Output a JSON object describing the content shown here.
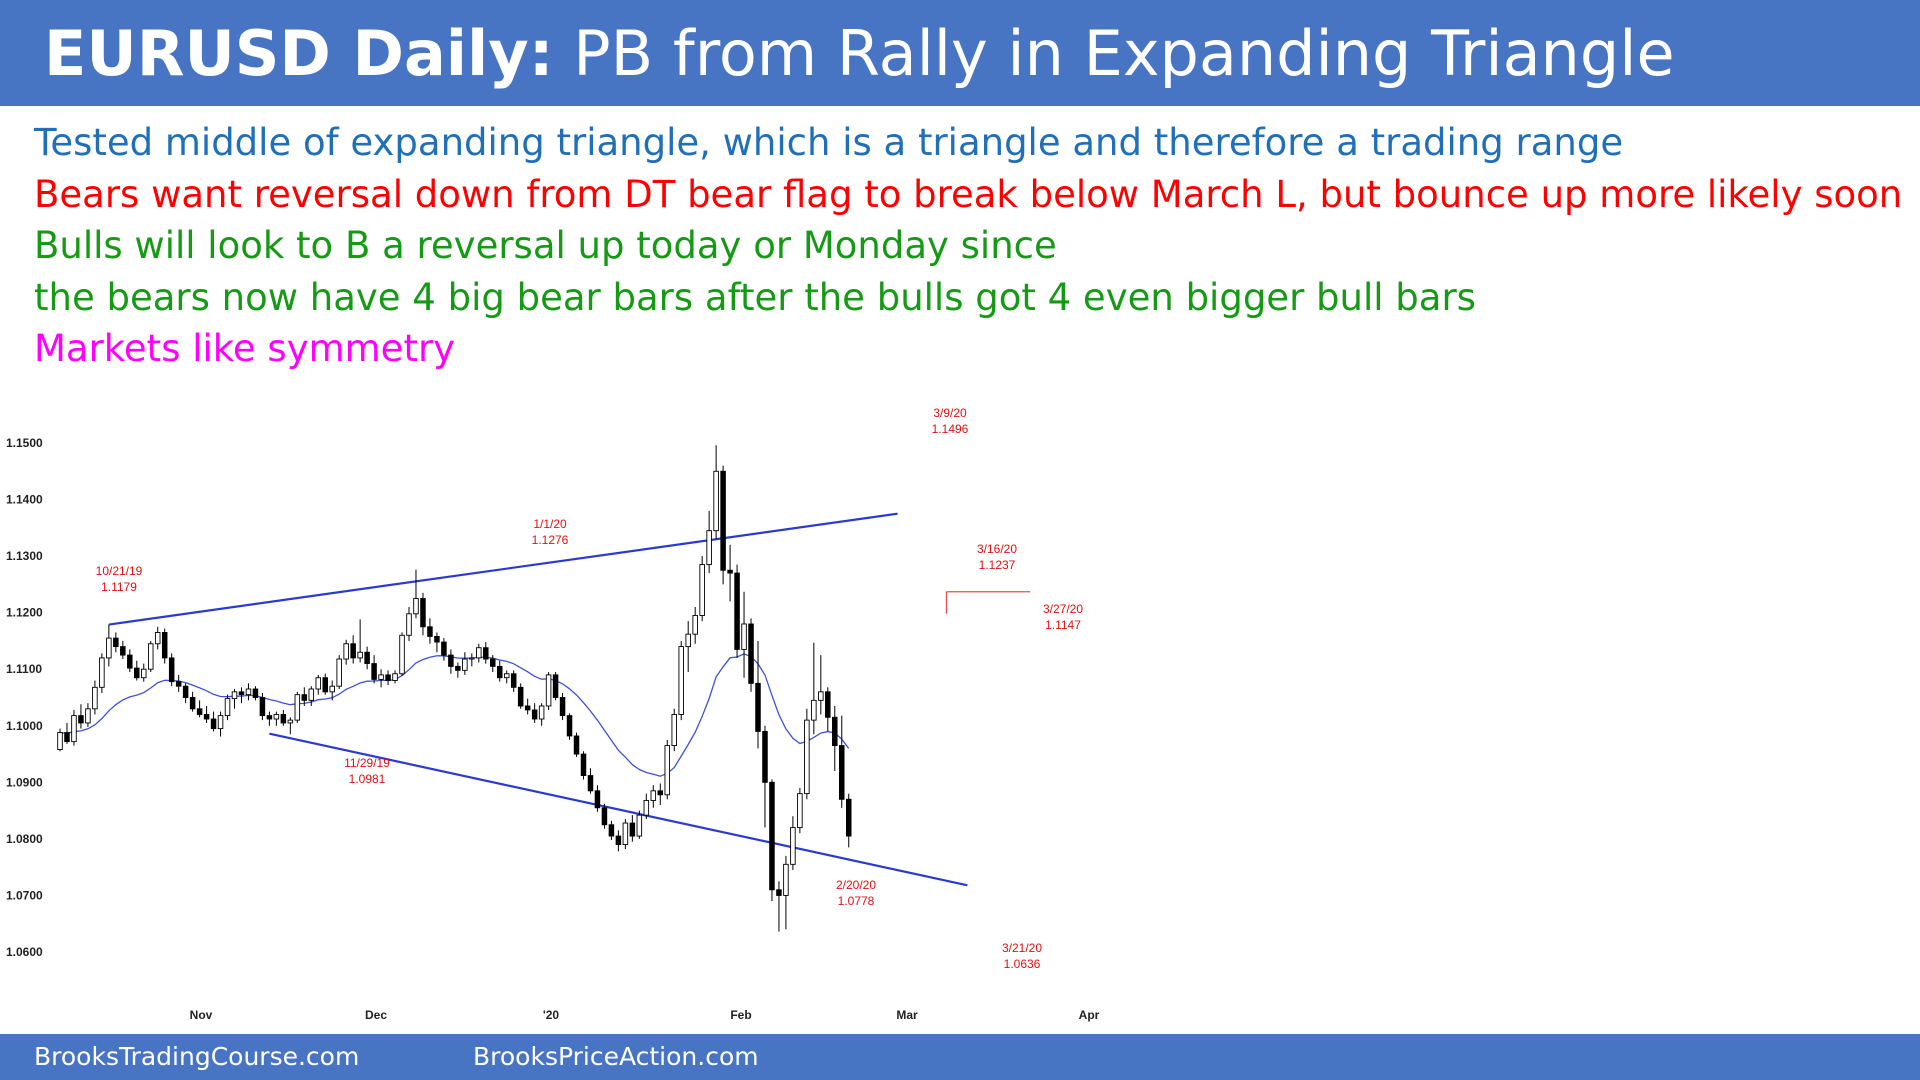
{
  "header": {
    "title_bold": "EURUSD Daily:",
    "title_rest": "PB from Rally in Expanding Triangle"
  },
  "notes": [
    {
      "text": "Tested middle of expanding triangle, which is a triangle and therefore a trading range",
      "color": "#1f6fb9"
    },
    {
      "text": "Bears want reversal down from DT bear flag to break below March L, but bounce up more likely soon",
      "color": "#ff0000"
    },
    {
      "text": "Bulls will look to B a reversal up today or Monday since",
      "color": "#169a16"
    },
    {
      "text": "the bears now have 4 big bear bars after the bulls got 4 even bigger bull bars",
      "color": "#169a16"
    },
    {
      "text": "Markets like symmetry",
      "color": "#ff00ff"
    }
  ],
  "chart_data": {
    "type": "candlestick",
    "y_ticks": [
      "1.1500",
      "1.1400",
      "1.1300",
      "1.1200",
      "1.1100",
      "1.1000",
      "1.0900",
      "1.0800",
      "1.0700",
      "1.0600"
    ],
    "ylim": [
      1.055,
      1.152
    ],
    "x_ticks": [
      "Nov",
      "Dec",
      "'20",
      "Feb",
      "Mar",
      "Apr"
    ],
    "annotations": [
      {
        "date": "10/21/19",
        "price": "1.1179"
      },
      {
        "date": "11/29/19",
        "price": "1.0981"
      },
      {
        "date": "1/1/20",
        "price": "1.1276"
      },
      {
        "date": "2/20/20",
        "price": "1.0778"
      },
      {
        "date": "3/9/20",
        "price": "1.1496"
      },
      {
        "date": "3/16/20",
        "price": "1.1237"
      },
      {
        "date": "3/27/20",
        "price": "1.1147"
      },
      {
        "date": "3/21/20",
        "price": "1.0636"
      }
    ],
    "trendlines": [
      {
        "name": "upper",
        "from": {
          "bar": 7,
          "price": 1.1179
        },
        "to": {
          "bar": 120,
          "price": 1.1375
        }
      },
      {
        "name": "lower",
        "from": {
          "bar": 30,
          "price": 1.0986
        },
        "to": {
          "bar": 130,
          "price": 1.0718
        }
      }
    ],
    "resistance_line": {
      "from_bar": 127,
      "to_bar": 139,
      "price": 1.1237
    },
    "moving_average_color": "#3f51d6",
    "trendline_color": "#2a3ad0",
    "annotation_color": "#e01010",
    "bars": [
      [
        1.0958,
        1.0995,
        1.0955,
        1.0988
      ],
      [
        1.0988,
        1.1005,
        1.0968,
        1.0972
      ],
      [
        1.0972,
        1.1028,
        1.0965,
        1.1018
      ],
      [
        1.1018,
        1.1038,
        1.0995,
        1.1005
      ],
      [
        1.1005,
        1.104,
        1.0998,
        1.103
      ],
      [
        1.103,
        1.108,
        1.102,
        1.1068
      ],
      [
        1.1068,
        1.1128,
        1.1058,
        1.112
      ],
      [
        1.112,
        1.1179,
        1.1105,
        1.1155
      ],
      [
        1.1155,
        1.1165,
        1.113,
        1.114
      ],
      [
        1.114,
        1.115,
        1.1118,
        1.1125
      ],
      [
        1.1125,
        1.1135,
        1.1095,
        1.1102
      ],
      [
        1.1102,
        1.1115,
        1.108,
        1.1085
      ],
      [
        1.1085,
        1.111,
        1.1078,
        1.11
      ],
      [
        1.11,
        1.115,
        1.1095,
        1.1145
      ],
      [
        1.1145,
        1.1175,
        1.1135,
        1.1165
      ],
      [
        1.1165,
        1.1172,
        1.111,
        1.112
      ],
      [
        1.112,
        1.1128,
        1.107,
        1.1078
      ],
      [
        1.1078,
        1.109,
        1.106,
        1.107
      ],
      [
        1.107,
        1.1075,
        1.104,
        1.105
      ],
      [
        1.105,
        1.106,
        1.1025,
        1.103
      ],
      [
        1.103,
        1.1045,
        1.1015,
        1.102
      ],
      [
        1.102,
        1.1035,
        1.1005,
        1.1012
      ],
      [
        1.1012,
        1.1025,
        1.099,
        1.0995
      ],
      [
        1.0995,
        1.1025,
        1.0981,
        1.1018
      ],
      [
        1.1018,
        1.1055,
        1.101,
        1.1048
      ],
      [
        1.1048,
        1.1065,
        1.103,
        1.106
      ],
      [
        1.106,
        1.1068,
        1.104,
        1.1055
      ],
      [
        1.1055,
        1.1075,
        1.1045,
        1.1065
      ],
      [
        1.1065,
        1.107,
        1.1045,
        1.105
      ],
      [
        1.105,
        1.1058,
        1.101,
        1.1018
      ],
      [
        1.1018,
        1.1025,
        1.1,
        1.1012
      ],
      [
        1.1012,
        1.1025,
        1.1,
        1.102
      ],
      [
        1.102,
        1.1028,
        1.1,
        1.1005
      ],
      [
        1.1005,
        1.1015,
        1.0985,
        1.101
      ],
      [
        1.101,
        1.106,
        1.1005,
        1.1055
      ],
      [
        1.1055,
        1.1068,
        1.1035,
        1.1045
      ],
      [
        1.1045,
        1.107,
        1.1035,
        1.1065
      ],
      [
        1.1065,
        1.109,
        1.1055,
        1.1085
      ],
      [
        1.1085,
        1.1092,
        1.1055,
        1.106
      ],
      [
        1.106,
        1.108,
        1.1045,
        1.107
      ],
      [
        1.107,
        1.1125,
        1.1065,
        1.1118
      ],
      [
        1.1118,
        1.1152,
        1.1108,
        1.1145
      ],
      [
        1.1145,
        1.116,
        1.111,
        1.112
      ],
      [
        1.112,
        1.1188,
        1.1112,
        1.113
      ],
      [
        1.113,
        1.114,
        1.11,
        1.111
      ],
      [
        1.111,
        1.1125,
        1.1075,
        1.1082
      ],
      [
        1.1082,
        1.11,
        1.1068,
        1.109
      ],
      [
        1.109,
        1.1098,
        1.1072,
        1.108
      ],
      [
        1.108,
        1.1098,
        1.1075,
        1.1092
      ],
      [
        1.1092,
        1.1165,
        1.1088,
        1.116
      ],
      [
        1.116,
        1.121,
        1.115,
        1.1198
      ],
      [
        1.1198,
        1.1276,
        1.119,
        1.1225
      ],
      [
        1.1225,
        1.1235,
        1.116,
        1.1175
      ],
      [
        1.1175,
        1.119,
        1.1145,
        1.1158
      ],
      [
        1.1158,
        1.1165,
        1.113,
        1.1148
      ],
      [
        1.1148,
        1.1155,
        1.1115,
        1.1125
      ],
      [
        1.1125,
        1.1135,
        1.1092,
        1.1105
      ],
      [
        1.1105,
        1.1112,
        1.1085,
        1.1098
      ],
      [
        1.1098,
        1.113,
        1.109,
        1.1118
      ],
      [
        1.1118,
        1.1128,
        1.1105,
        1.112
      ],
      [
        1.112,
        1.1145,
        1.1112,
        1.1138
      ],
      [
        1.1138,
        1.1148,
        1.111,
        1.1118
      ],
      [
        1.1118,
        1.1125,
        1.1095,
        1.1105
      ],
      [
        1.1105,
        1.1115,
        1.1078,
        1.1085
      ],
      [
        1.1085,
        1.1098,
        1.1075,
        1.1092
      ],
      [
        1.1092,
        1.1098,
        1.106,
        1.1068
      ],
      [
        1.1068,
        1.1075,
        1.103,
        1.1035
      ],
      [
        1.1035,
        1.1048,
        1.102,
        1.1028
      ],
      [
        1.1028,
        1.104,
        1.1005,
        1.1012
      ],
      [
        1.1012,
        1.104,
        1.1,
        1.1035
      ],
      [
        1.1035,
        1.1095,
        1.1028,
        1.109
      ],
      [
        1.109,
        1.1095,
        1.1045,
        1.105
      ],
      [
        1.105,
        1.1058,
        1.101,
        1.1018
      ],
      [
        1.1018,
        1.1022,
        1.0975,
        1.0982
      ],
      [
        1.0982,
        1.0988,
        1.0945,
        1.095
      ],
      [
        1.095,
        1.0955,
        1.0905,
        1.0912
      ],
      [
        1.0912,
        1.0925,
        1.088,
        1.0885
      ],
      [
        1.0885,
        1.0895,
        1.0848,
        1.0855
      ],
      [
        1.0855,
        1.0862,
        1.0818,
        1.0825
      ],
      [
        1.0825,
        1.0832,
        1.0798,
        1.0805
      ],
      [
        1.0805,
        1.0815,
        1.0778,
        1.079
      ],
      [
        1.079,
        1.0835,
        1.0782,
        1.0828
      ],
      [
        1.0828,
        1.0842,
        1.0795,
        1.0805
      ],
      [
        1.0805,
        1.085,
        1.08,
        1.0842
      ],
      [
        1.0842,
        1.088,
        1.0835,
        1.0868
      ],
      [
        1.0868,
        1.0895,
        1.0855,
        1.0885
      ],
      [
        1.0885,
        1.0898,
        1.086,
        1.0878
      ],
      [
        1.0878,
        1.0975,
        1.087,
        1.0965
      ],
      [
        1.0965,
        1.103,
        1.0955,
        1.102
      ],
      [
        1.102,
        1.115,
        1.101,
        1.114
      ],
      [
        1.114,
        1.1185,
        1.1095,
        1.1162
      ],
      [
        1.1162,
        1.121,
        1.1145,
        1.1195
      ],
      [
        1.1195,
        1.13,
        1.1185,
        1.1285
      ],
      [
        1.1285,
        1.138,
        1.127,
        1.1345
      ],
      [
        1.1345,
        1.1496,
        1.133,
        1.145
      ],
      [
        1.145,
        1.146,
        1.125,
        1.1275
      ],
      [
        1.1275,
        1.132,
        1.122,
        1.127
      ],
      [
        1.127,
        1.1285,
        1.112,
        1.1135
      ],
      [
        1.1135,
        1.1237,
        1.1085,
        1.118
      ],
      [
        1.118,
        1.119,
        1.106,
        1.1075
      ],
      [
        1.1075,
        1.115,
        1.096,
        1.099
      ],
      [
        1.099,
        1.1,
        1.082,
        1.09
      ],
      [
        1.09,
        1.0905,
        1.069,
        1.071
      ],
      [
        1.071,
        1.0725,
        1.0636,
        1.07
      ],
      [
        1.07,
        1.077,
        1.064,
        1.0755
      ],
      [
        1.0755,
        1.084,
        1.0745,
        1.082
      ],
      [
        1.082,
        1.089,
        1.081,
        1.088
      ],
      [
        1.088,
        1.103,
        1.087,
        1.101
      ],
      [
        1.101,
        1.1147,
        1.0985,
        1.1045
      ],
      [
        1.1045,
        1.1125,
        1.102,
        1.106
      ],
      [
        1.106,
        1.1068,
        1.099,
        1.1015
      ],
      [
        1.1015,
        1.1035,
        1.092,
        1.0965
      ],
      [
        1.0965,
        1.1018,
        1.0855,
        1.087
      ],
      [
        1.087,
        1.088,
        1.0785,
        1.0805
      ]
    ]
  },
  "footer": {
    "left": "BrooksTradingCourse.com",
    "right": "BrooksPriceAction.com"
  }
}
